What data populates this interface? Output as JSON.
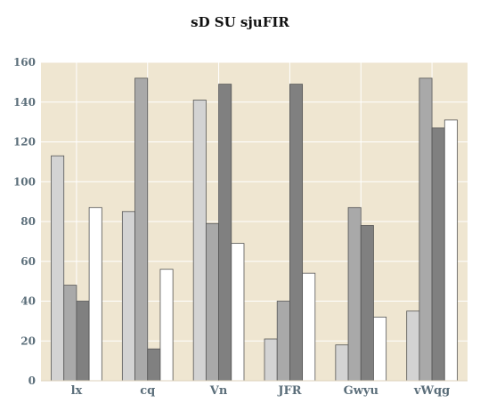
{
  "chart_data": {
    "type": "bar",
    "title": "sD SU sjuFIR",
    "categories": [
      "lx",
      "cq",
      "Vn",
      "JFR",
      "Gwyu",
      "vWqg"
    ],
    "series": [
      {
        "values": [
          113,
          85,
          141,
          21,
          18,
          35
        ],
        "color": "#d3d3d3"
      },
      {
        "values": [
          48,
          152,
          79,
          40,
          87,
          152
        ],
        "color": "#a9a9a9"
      },
      {
        "values": [
          40,
          16,
          149,
          149,
          78,
          127
        ],
        "color": "#808080"
      },
      {
        "values": [
          87,
          56,
          69,
          54,
          32,
          131
        ],
        "color": "#ffffff"
      }
    ],
    "ylim": [
      0,
      160
    ],
    "yticks": [
      0,
      20,
      40,
      60,
      80,
      100,
      120,
      140,
      160
    ],
    "xlabel": "",
    "ylabel": "",
    "grid": true,
    "background": "#efe6d1",
    "legend": "none"
  }
}
